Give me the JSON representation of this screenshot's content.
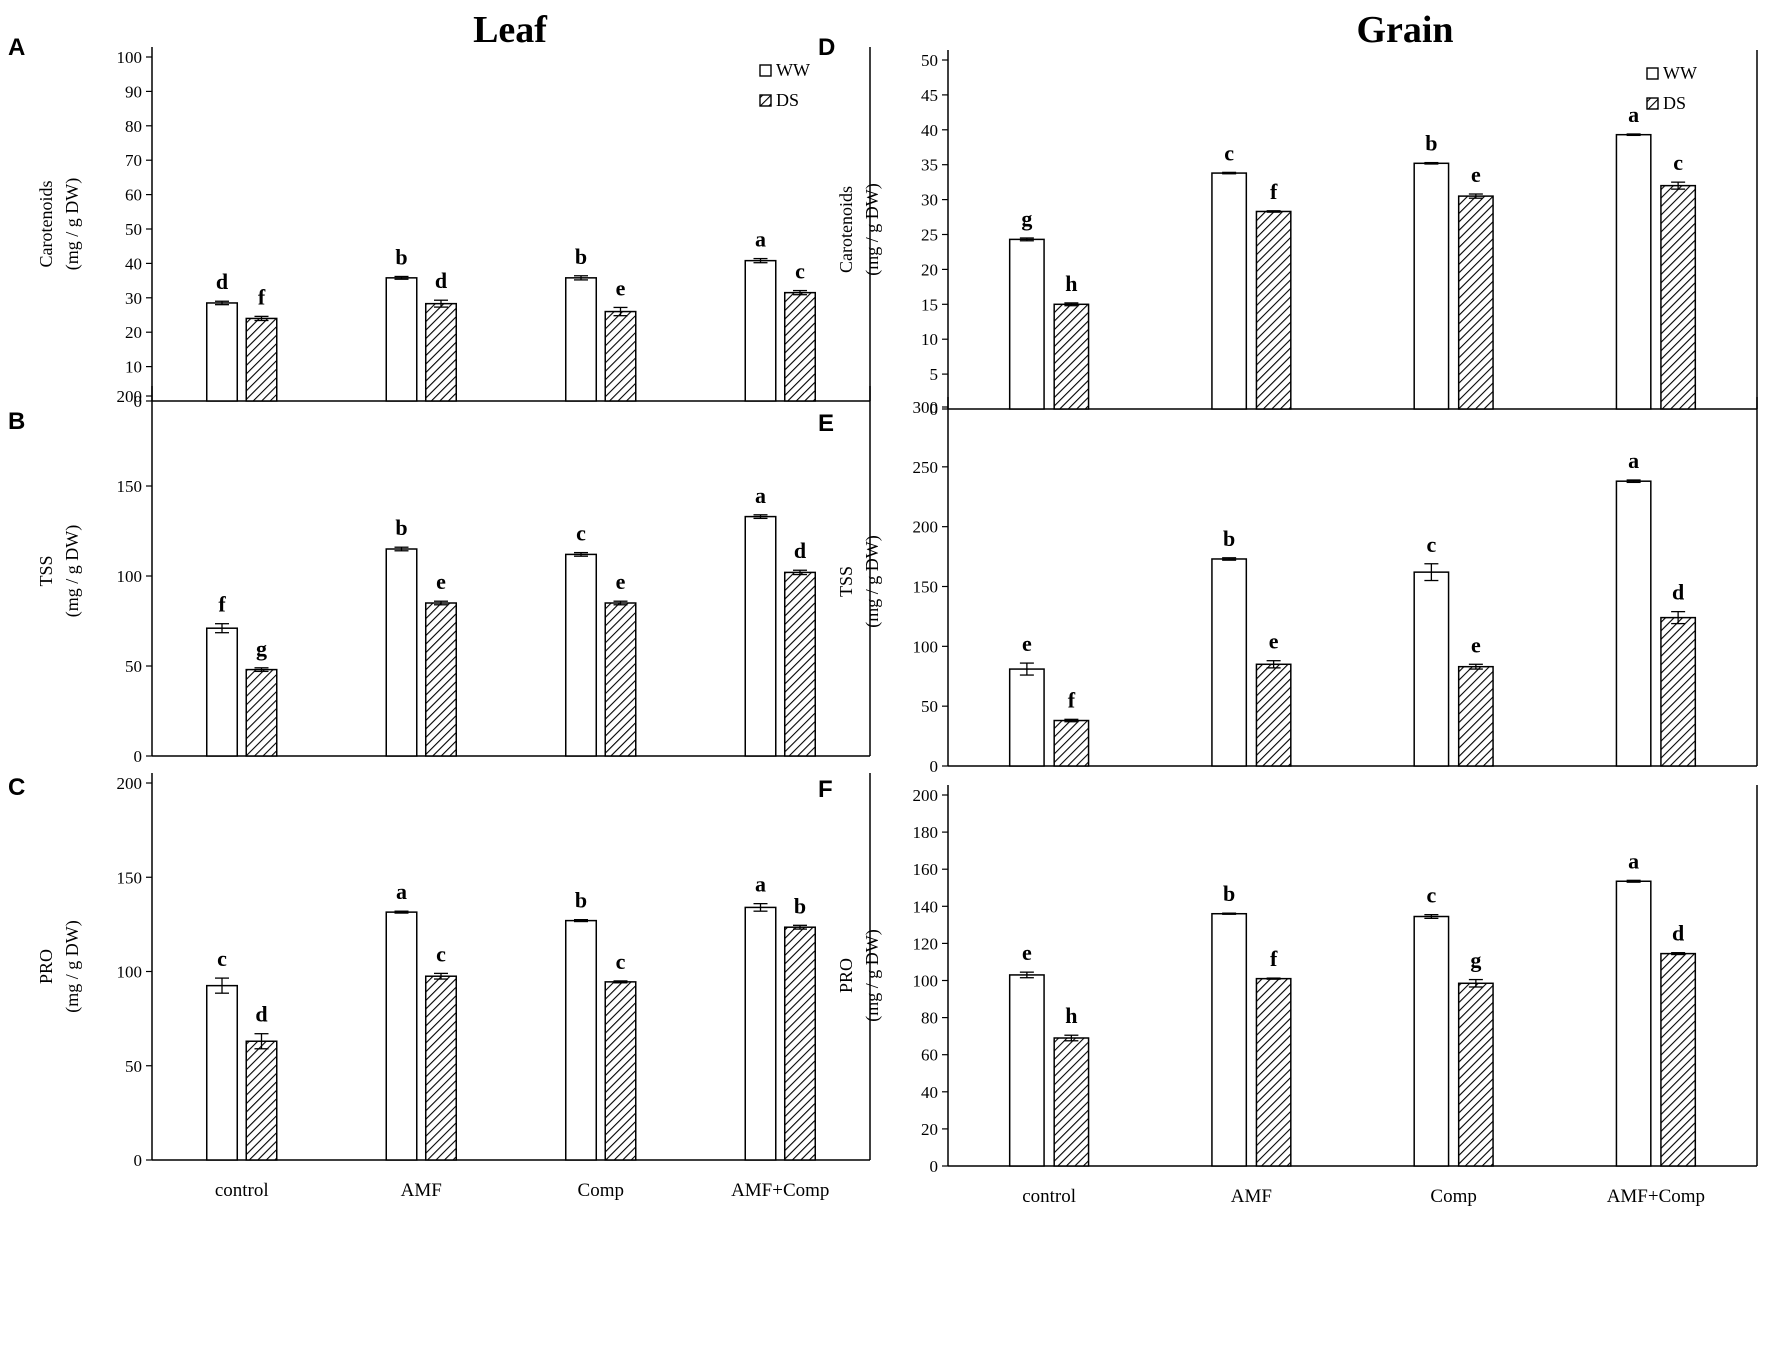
{
  "columns": {
    "left": "Leaf",
    "right": "Grain"
  },
  "legend": {
    "ww": "WW",
    "ds": "DS"
  },
  "colors": {
    "ww_fill": "#ffffff",
    "ds_hatch": "#000000",
    "axis": "#000000"
  },
  "chart_data": [
    {
      "id": "A",
      "type": "bar",
      "column": "left",
      "categories": [
        "control",
        "AMF",
        "Comp",
        "AMF+Comp"
      ],
      "ylabel_line1": "Carotenoids",
      "ylabel_line2": "(mg / g DW)",
      "ylim": [
        0,
        100
      ],
      "yticks": [
        0,
        10,
        20,
        30,
        40,
        50,
        60,
        70,
        80,
        90,
        100
      ],
      "show_legend": true,
      "show_xlabels": false,
      "series": [
        {
          "name": "WW",
          "values": [
            28.5,
            35.8,
            35.8,
            40.8
          ],
          "errors": [
            0.5,
            0.4,
            0.6,
            0.6
          ],
          "letters": [
            "d",
            "b",
            "b",
            "a"
          ]
        },
        {
          "name": "DS",
          "values": [
            24.0,
            28.3,
            26.0,
            31.5
          ],
          "errors": [
            0.6,
            1.0,
            1.2,
            0.6
          ],
          "letters": [
            "f",
            "d",
            "e",
            "c"
          ]
        }
      ]
    },
    {
      "id": "B",
      "type": "bar",
      "column": "left",
      "categories": [
        "control",
        "AMF",
        "Comp",
        "AMF+Comp"
      ],
      "ylabel_line1": "TSS",
      "ylabel_line2": "(mg / g DW)",
      "ylim": [
        0,
        200
      ],
      "yticks": [
        0,
        50,
        100,
        150,
        200
      ],
      "show_legend": false,
      "show_xlabels": false,
      "series": [
        {
          "name": "WW",
          "values": [
            71,
            115,
            112,
            133
          ],
          "errors": [
            2.5,
            1.0,
            1.0,
            1.0
          ],
          "letters": [
            "f",
            "b",
            "c",
            "a"
          ]
        },
        {
          "name": "DS",
          "values": [
            48,
            85,
            85,
            102
          ],
          "errors": [
            1.0,
            1.0,
            1.0,
            1.2
          ],
          "letters": [
            "g",
            "e",
            "e",
            "d"
          ]
        }
      ]
    },
    {
      "id": "C",
      "type": "bar",
      "column": "left",
      "categories": [
        "control",
        "AMF",
        "Comp",
        "AMF+Comp"
      ],
      "ylabel_line1": "PRO",
      "ylabel_line2": "(mg / g DW)",
      "ylim": [
        0,
        200
      ],
      "yticks": [
        0,
        50,
        100,
        150,
        200
      ],
      "show_legend": false,
      "show_xlabels": true,
      "series": [
        {
          "name": "WW",
          "values": [
            92.5,
            131.5,
            127,
            134
          ],
          "errors": [
            4.0,
            0.5,
            0.5,
            2.0
          ],
          "letters": [
            "c",
            "a",
            "b",
            "a"
          ]
        },
        {
          "name": "DS",
          "values": [
            63,
            97.5,
            94.5,
            123.5
          ],
          "errors": [
            4.0,
            1.5,
            0.5,
            1.0
          ],
          "letters": [
            "d",
            "c",
            "c",
            "b"
          ]
        }
      ]
    },
    {
      "id": "D",
      "type": "bar",
      "column": "right",
      "categories": [
        "control",
        "AMF",
        "Comp",
        "AMF+Comp"
      ],
      "ylabel_line1": "Carotenoids",
      "ylabel_line2": "(mg / g DW)",
      "ylim": [
        0,
        50
      ],
      "yticks": [
        0,
        5,
        10,
        15,
        20,
        25,
        30,
        35,
        40,
        45,
        50
      ],
      "show_legend": true,
      "show_xlabels": false,
      "series": [
        {
          "name": "WW",
          "values": [
            24.3,
            33.8,
            35.2,
            39.3
          ],
          "errors": [
            0.2,
            0.1,
            0.1,
            0.1
          ],
          "letters": [
            "g",
            "c",
            "b",
            "a"
          ]
        },
        {
          "name": "DS",
          "values": [
            15.0,
            28.3,
            30.5,
            32.0
          ],
          "errors": [
            0.2,
            0.1,
            0.3,
            0.5
          ],
          "letters": [
            "h",
            "f",
            "e",
            "c"
          ]
        }
      ]
    },
    {
      "id": "E",
      "type": "bar",
      "column": "right",
      "categories": [
        "control",
        "AMF",
        "Comp",
        "AMF+Comp"
      ],
      "ylabel_line1": "TSS",
      "ylabel_line2": "(mg / g DW)",
      "ylim": [
        0,
        300
      ],
      "yticks": [
        0,
        50,
        100,
        150,
        200,
        250,
        300
      ],
      "show_legend": false,
      "show_xlabels": false,
      "series": [
        {
          "name": "WW",
          "values": [
            81,
            173,
            162,
            238
          ],
          "errors": [
            5.0,
            1.0,
            7.0,
            1.0
          ],
          "letters": [
            "e",
            "b",
            "c",
            "a"
          ]
        },
        {
          "name": "DS",
          "values": [
            38,
            85,
            83,
            124
          ],
          "errors": [
            1.0,
            3.0,
            2.0,
            5.0
          ],
          "letters": [
            "f",
            "e",
            "e",
            "d"
          ]
        }
      ]
    },
    {
      "id": "F",
      "type": "bar",
      "column": "right",
      "categories": [
        "control",
        "AMF",
        "Comp",
        "AMF+Comp"
      ],
      "ylabel_line1": "PRO",
      "ylabel_line2": "(mg / g DW)",
      "ylim": [
        0,
        200
      ],
      "yticks": [
        0,
        20,
        40,
        60,
        80,
        100,
        120,
        140,
        160,
        180,
        200
      ],
      "show_legend": false,
      "show_xlabels": true,
      "series": [
        {
          "name": "WW",
          "values": [
            103,
            136,
            134.5,
            153.5
          ],
          "errors": [
            1.5,
            0.3,
            1.0,
            0.5
          ],
          "letters": [
            "e",
            "b",
            "c",
            "a"
          ]
        },
        {
          "name": "DS",
          "values": [
            69,
            101,
            98.5,
            114.5
          ],
          "errors": [
            1.5,
            0.3,
            2.0,
            0.5
          ],
          "letters": [
            "h",
            "f",
            "g",
            "d"
          ]
        }
      ]
    }
  ]
}
